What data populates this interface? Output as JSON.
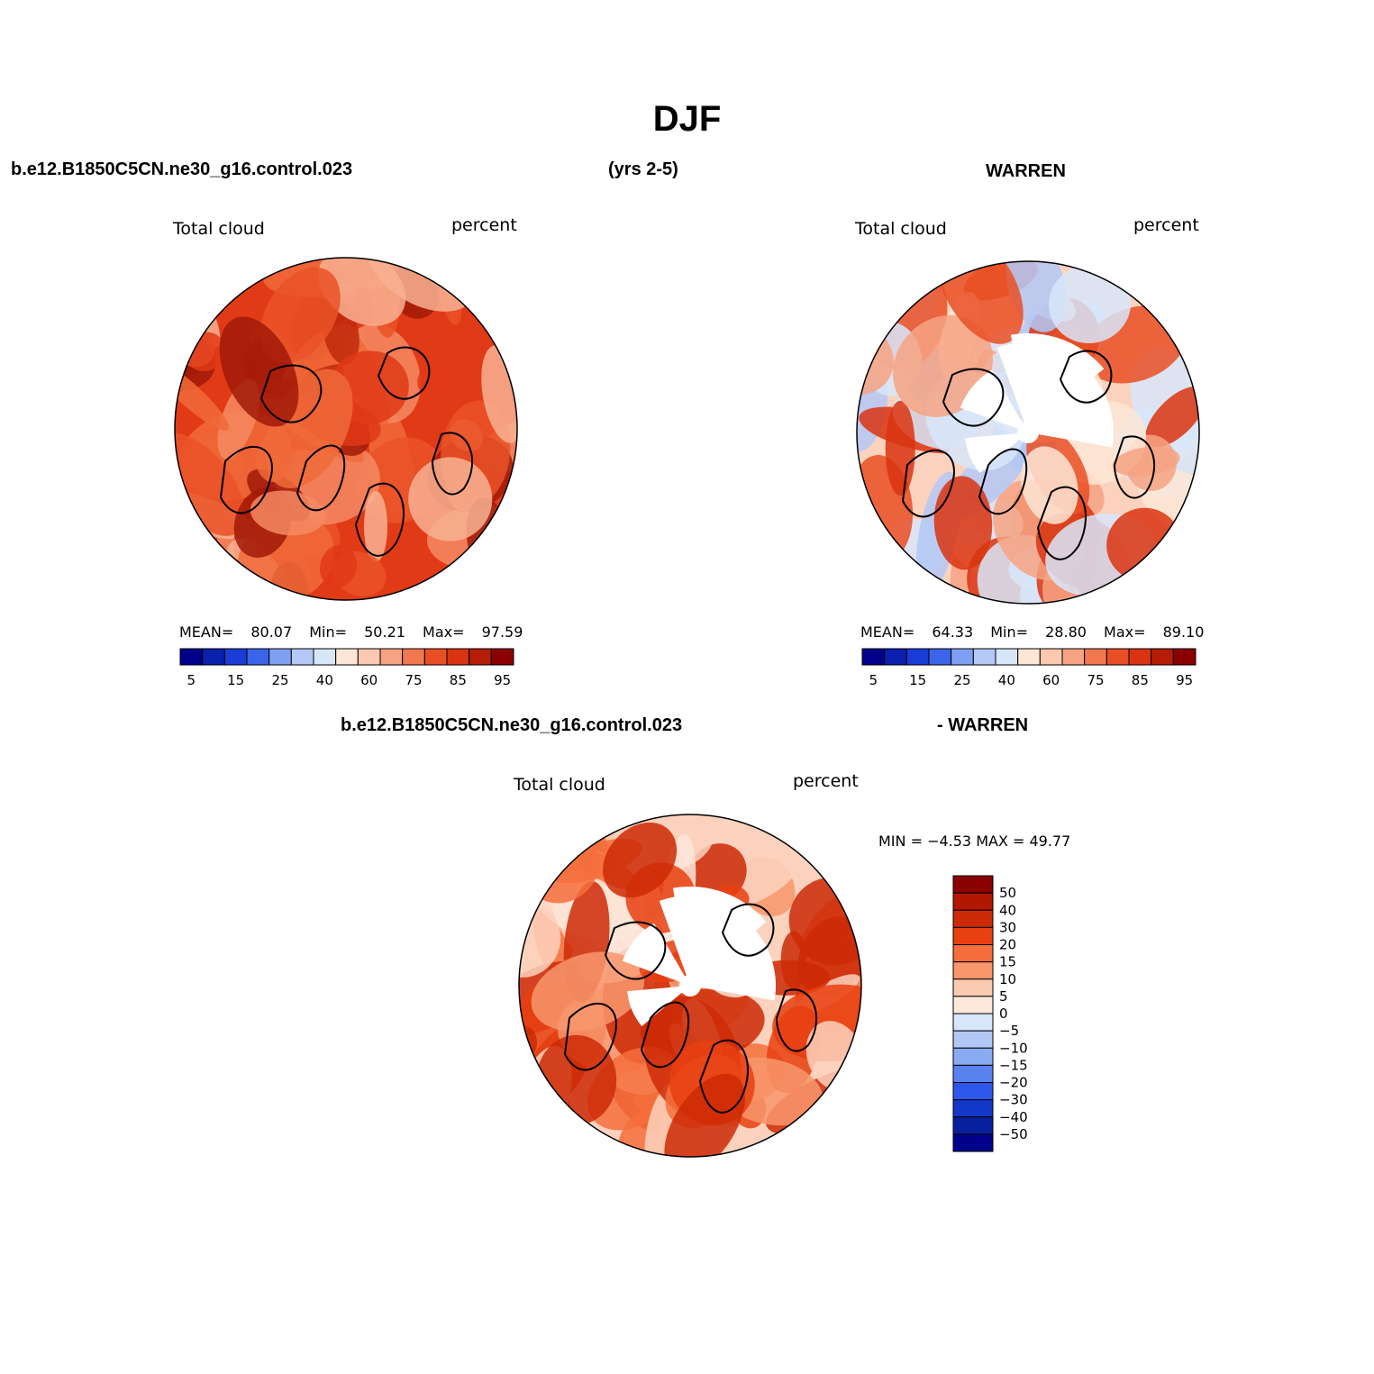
{
  "title": "DJF",
  "header": {
    "case": "b.e12.B1850C5CN.ne30_g16.control.023",
    "years": "(yrs 2-5)",
    "obs": "WARREN"
  },
  "diff_header": {
    "case": "b.e12.B1850C5CN.ne30_g16.control.023",
    "obs": "- WARREN"
  },
  "panels": [
    {
      "variable": "Total cloud",
      "units": "percent",
      "stats": {
        "mean_label": "MEAN=",
        "mean": "80.07",
        "min_label": "Min=",
        "min": "50.21",
        "max_label": "Max=",
        "max": "97.59"
      }
    },
    {
      "variable": "Total cloud",
      "units": "percent",
      "stats": {
        "mean_label": "MEAN=",
        "mean": "64.33",
        "min_label": "Min=",
        "min": "28.80",
        "max_label": "Max=",
        "max": "89.10"
      }
    }
  ],
  "diff_panel": {
    "variable": "Total cloud",
    "units": "percent",
    "minmax": "MIN =  −4.53 MAX =   49.77"
  },
  "colorbar_h": {
    "colors": [
      "#00008b",
      "#0a1fae",
      "#1a3cd6",
      "#3c64ea",
      "#7f9ff2",
      "#b3c8f6",
      "#d8e6fa",
      "#fde6d6",
      "#fbc8b0",
      "#f6a383",
      "#f2784f",
      "#e94f25",
      "#d93411",
      "#b51d06",
      "#8b0000"
    ],
    "ticks": [
      "5",
      "15",
      "25",
      "40",
      "60",
      "75",
      "85",
      "95"
    ]
  },
  "colorbar_v": {
    "colors": [
      "#8b0000",
      "#b01800",
      "#cc2a06",
      "#e84010",
      "#f46e3c",
      "#f8966c",
      "#facbb0",
      "#fde8da",
      "#d8e6fa",
      "#b3c8f6",
      "#8aaaf4",
      "#5a82ee",
      "#2e58ec",
      "#1238c8",
      "#07209e",
      "#00008b"
    ],
    "ticks": [
      "50",
      "40",
      "30",
      "20",
      "15",
      "10",
      "5",
      "0",
      "−5",
      "−10",
      "−15",
      "−20",
      "−30",
      "−40",
      "−50"
    ]
  },
  "fields": {
    "model_colors": [
      "#e13a16",
      "#ea5227",
      "#f06a3a",
      "#f48a62",
      "#c02a0c",
      "#a11a08",
      "#f8b293"
    ],
    "obs_colors": [
      "#fbd2bd",
      "#fde6d6",
      "#f6a383",
      "#e94f25",
      "#d93411",
      "#d8e6fa",
      "#b3c8f6",
      "#ffffff"
    ],
    "diff_colors": [
      "#fbd2bd",
      "#fde8da",
      "#f8966c",
      "#f46e3c",
      "#e84010",
      "#cc2a06",
      "#ffffff"
    ]
  }
}
